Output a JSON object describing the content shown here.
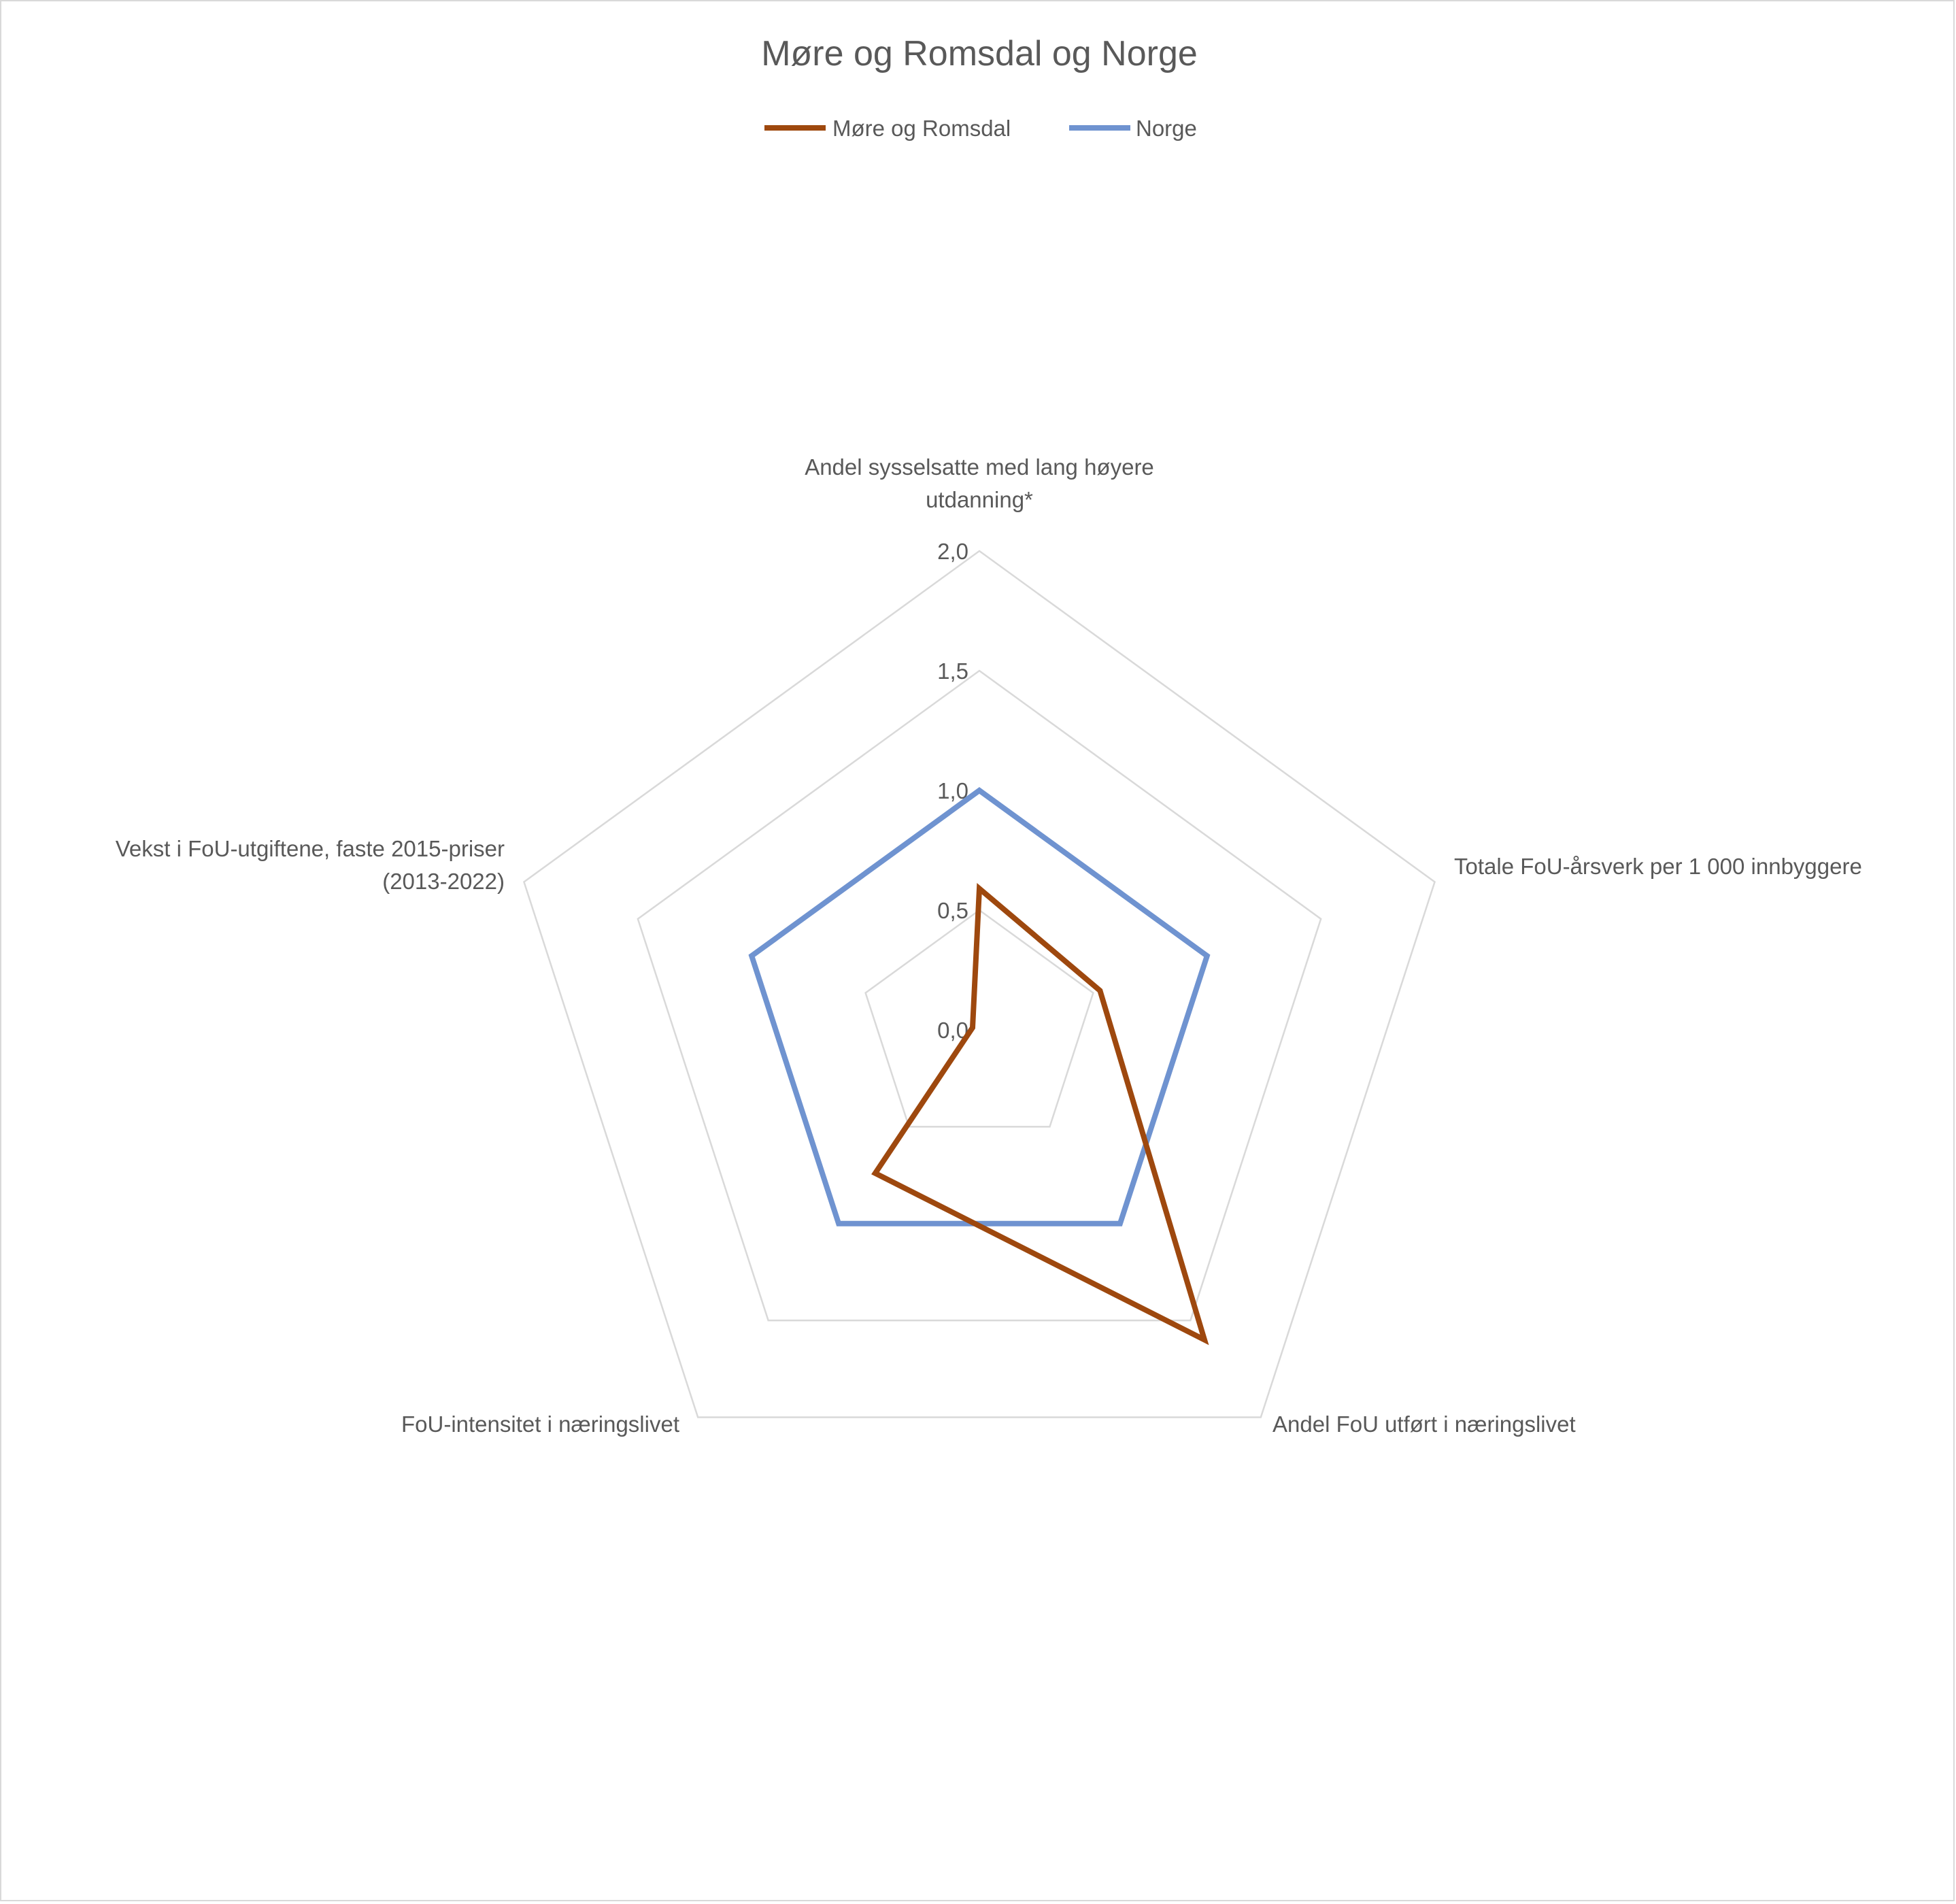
{
  "chart_data": {
    "type": "radar",
    "title": "Møre og Romsdal og Norge",
    "categories": [
      "Andel sysselsatte med lang høyere utdanning*",
      "Totale FoU-årsverk per 1 000 innbyggere",
      "Andel FoU utført i næringslivet",
      "FoU-intensitet i næringslivet",
      "Vekst i FoU-utgiftene, faste 2015-priser (2013-2022)"
    ],
    "category_lines": [
      [
        "Andel sysselsatte med lang høyere",
        "utdanning*"
      ],
      [
        "Totale FoU-årsverk per 1 000 innbyggere"
      ],
      [
        "Andel FoU utført i næringslivet"
      ],
      [
        "FoU-intensitet i næringslivet"
      ],
      [
        "Vekst i FoU-utgiftene, faste 2015-priser",
        "(2013-2022)"
      ]
    ],
    "series": [
      {
        "name": "Møre og Romsdal",
        "color": "#9E480E",
        "values": [
          0.59,
          0.53,
          1.6,
          0.74,
          0.03
        ]
      },
      {
        "name": "Norge",
        "color": "#6F93D0",
        "values": [
          1.0,
          1.0,
          1.0,
          1.0,
          1.0
        ]
      }
    ],
    "radial_axis": {
      "min": 0,
      "max": 2,
      "ticks": [
        0.0,
        0.5,
        1.0,
        1.5,
        2.0
      ],
      "tick_labels": [
        "0,0",
        "0,5",
        "1,0",
        "1,5",
        "2,0"
      ]
    },
    "grid": true,
    "legend_position": "top"
  }
}
